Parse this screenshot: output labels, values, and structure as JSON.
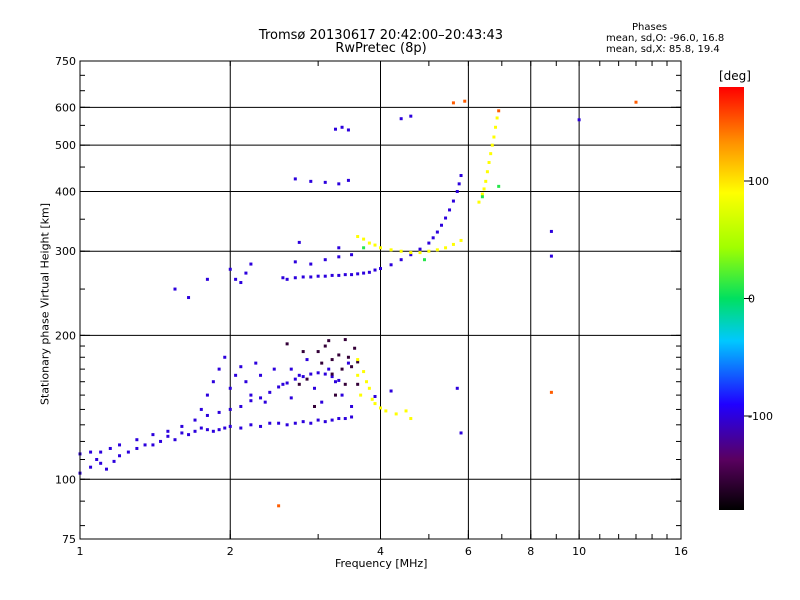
{
  "chart_data": {
    "type": "scatter",
    "title": "Tromsø 20130617 20:42:00–20:43:43",
    "subtitle": "RwPretec (8p)",
    "stats": {
      "heading": "Phases",
      "line1": "mean, sd,O: -96.0, 16.8",
      "line2": "mean, sd,X:  85.8, 19.4"
    },
    "xlabel": "Frequency [MHz]",
    "ylabel": "Stationary phase Virtual Height [km]",
    "x_scale": "log",
    "y_scale": "log",
    "xlim": [
      1,
      16
    ],
    "ylim": [
      75,
      750
    ],
    "x_ticks": [
      1,
      2,
      4,
      6,
      8,
      10,
      16
    ],
    "x_tick_labels": [
      "1",
      "2",
      "4",
      "6",
      "8",
      "10",
      "16"
    ],
    "x_grid": [
      2,
      4,
      6,
      8,
      10
    ],
    "y_ticks": [
      75,
      100,
      200,
      300,
      400,
      500,
      600,
      750
    ],
    "y_tick_labels": [
      "75",
      "100",
      "200",
      "300",
      "400",
      "500",
      "600",
      "750"
    ],
    "y_grid": [
      100,
      200,
      300,
      400,
      500,
      600
    ],
    "grid": true,
    "colorbar": {
      "label": "[deg]",
      "range": [
        -180,
        180
      ],
      "ticks": [
        100,
        0,
        -100
      ],
      "tick_labels": [
        "100",
        "0",
        "-100"
      ],
      "colormap": "rainbow (black-purple-blue-cyan-green-yellow-orange-red)"
    },
    "series": [
      {
        "phase_deg": -100,
        "points": [
          [
            1.0,
            103
          ],
          [
            1.05,
            106
          ],
          [
            1.08,
            110
          ],
          [
            1.1,
            108
          ],
          [
            1.13,
            105
          ],
          [
            1.17,
            109
          ],
          [
            1.2,
            112
          ],
          [
            1.25,
            114
          ],
          [
            1.3,
            116
          ],
          [
            1.35,
            118
          ],
          [
            1.4,
            118
          ],
          [
            1.45,
            120
          ],
          [
            1.5,
            123
          ],
          [
            1.55,
            121
          ],
          [
            1.6,
            125
          ],
          [
            1.65,
            124
          ],
          [
            1.7,
            126
          ],
          [
            1.75,
            128
          ],
          [
            1.8,
            127
          ],
          [
            1.85,
            126
          ],
          [
            1.9,
            127
          ],
          [
            1.95,
            128
          ],
          [
            2.0,
            129
          ],
          [
            2.1,
            128
          ],
          [
            2.2,
            130
          ],
          [
            2.3,
            129
          ],
          [
            2.4,
            131
          ],
          [
            2.5,
            131
          ],
          [
            2.6,
            130
          ],
          [
            2.7,
            131
          ],
          [
            2.8,
            132
          ],
          [
            2.9,
            131
          ],
          [
            3.0,
            133
          ],
          [
            3.1,
            132
          ],
          [
            3.2,
            133
          ],
          [
            3.3,
            134
          ],
          [
            3.4,
            134
          ],
          [
            3.5,
            135
          ],
          [
            1.0,
            113
          ],
          [
            1.05,
            114
          ],
          [
            1.1,
            114
          ],
          [
            1.15,
            116
          ],
          [
            1.2,
            118
          ],
          [
            1.3,
            121
          ],
          [
            1.4,
            124
          ],
          [
            1.5,
            126
          ],
          [
            1.6,
            129
          ],
          [
            1.7,
            133
          ],
          [
            1.8,
            136
          ],
          [
            1.9,
            138
          ],
          [
            2.0,
            140
          ],
          [
            2.1,
            142
          ],
          [
            2.2,
            146
          ],
          [
            2.3,
            148
          ],
          [
            2.4,
            152
          ],
          [
            2.5,
            156
          ],
          [
            2.6,
            159
          ],
          [
            2.7,
            162
          ],
          [
            2.8,
            164
          ],
          [
            2.9,
            166
          ],
          [
            3.0,
            167
          ],
          [
            3.1,
            166
          ],
          [
            3.2,
            164
          ],
          [
            3.3,
            161
          ],
          [
            1.75,
            140
          ],
          [
            1.8,
            150
          ],
          [
            1.85,
            160
          ],
          [
            1.9,
            170
          ],
          [
            1.95,
            180
          ],
          [
            2.0,
            155
          ],
          [
            2.05,
            165
          ],
          [
            2.1,
            172
          ],
          [
            2.15,
            160
          ],
          [
            2.2,
            150
          ],
          [
            2.25,
            175
          ],
          [
            2.3,
            165
          ],
          [
            2.35,
            145
          ],
          [
            2.45,
            170
          ],
          [
            2.55,
            158
          ],
          [
            2.65,
            148
          ],
          [
            2.75,
            165
          ],
          [
            2.85,
            178
          ],
          [
            2.95,
            155
          ],
          [
            3.05,
            145
          ],
          [
            3.15,
            170
          ],
          [
            3.25,
            160
          ],
          [
            3.35,
            150
          ],
          [
            3.45,
            175
          ],
          [
            3.5,
            142
          ],
          [
            2.0,
            275
          ],
          [
            2.05,
            262
          ],
          [
            2.1,
            258
          ],
          [
            2.15,
            270
          ],
          [
            2.2,
            282
          ],
          [
            2.55,
            264
          ],
          [
            2.6,
            262
          ],
          [
            2.7,
            264
          ],
          [
            2.8,
            265
          ],
          [
            2.9,
            265
          ],
          [
            3.0,
            266
          ],
          [
            3.1,
            266
          ],
          [
            3.2,
            267
          ],
          [
            3.3,
            267
          ],
          [
            3.4,
            268
          ],
          [
            3.5,
            268
          ],
          [
            3.6,
            269
          ],
          [
            3.7,
            270
          ],
          [
            3.8,
            271
          ],
          [
            3.9,
            274
          ],
          [
            4.0,
            276
          ],
          [
            4.2,
            281
          ],
          [
            4.4,
            288
          ],
          [
            4.6,
            295
          ],
          [
            4.8,
            303
          ],
          [
            5.0,
            312
          ],
          [
            5.1,
            320
          ],
          [
            5.2,
            329
          ],
          [
            5.3,
            340
          ],
          [
            5.4,
            352
          ],
          [
            5.5,
            366
          ],
          [
            5.6,
            382
          ],
          [
            5.7,
            400
          ],
          [
            5.75,
            415
          ],
          [
            5.8,
            432
          ],
          [
            2.7,
            285
          ],
          [
            2.9,
            282
          ],
          [
            3.1,
            288
          ],
          [
            3.3,
            292
          ],
          [
            3.5,
            295
          ],
          [
            2.7,
            425
          ],
          [
            2.9,
            420
          ],
          [
            3.1,
            418
          ],
          [
            3.3,
            415
          ],
          [
            3.45,
            422
          ],
          [
            3.25,
            540
          ],
          [
            3.35,
            545
          ],
          [
            3.45,
            538
          ],
          [
            4.4,
            568
          ],
          [
            4.6,
            575
          ],
          [
            1.55,
            250
          ],
          [
            1.65,
            240
          ],
          [
            1.8,
            262
          ],
          [
            2.75,
            313
          ],
          [
            3.3,
            305
          ],
          [
            10.0,
            565
          ],
          [
            8.8,
            330
          ],
          [
            8.8,
            293
          ],
          [
            5.7,
            155
          ],
          [
            5.8,
            125
          ],
          [
            4.2,
            153
          ],
          [
            3.9,
            149
          ],
          [
            2.65,
            170
          ]
        ]
      },
      {
        "phase_deg": -155,
        "points": [
          [
            3.0,
            185
          ],
          [
            3.1,
            190
          ],
          [
            3.2,
            178
          ],
          [
            3.3,
            182
          ],
          [
            3.4,
            196
          ],
          [
            3.5,
            172
          ],
          [
            3.55,
            188
          ],
          [
            3.2,
            166
          ],
          [
            3.35,
            170
          ],
          [
            3.45,
            180
          ],
          [
            3.25,
            150
          ],
          [
            3.4,
            158
          ],
          [
            2.75,
            158
          ],
          [
            2.85,
            162
          ],
          [
            2.95,
            142
          ],
          [
            3.05,
            175
          ],
          [
            3.15,
            195
          ],
          [
            2.6,
            192
          ],
          [
            2.8,
            185
          ],
          [
            3.6,
            158
          ],
          [
            3.6,
            176
          ]
        ]
      },
      {
        "phase_deg": 90,
        "points": [
          [
            3.6,
            322
          ],
          [
            3.7,
            318
          ],
          [
            3.8,
            312
          ],
          [
            3.9,
            309
          ],
          [
            4.0,
            305
          ],
          [
            4.2,
            302
          ],
          [
            4.4,
            300
          ],
          [
            4.6,
            298
          ],
          [
            4.8,
            298
          ],
          [
            5.0,
            300
          ],
          [
            5.2,
            302
          ],
          [
            5.4,
            305
          ],
          [
            5.6,
            310
          ],
          [
            5.8,
            316
          ],
          [
            6.3,
            380
          ],
          [
            6.4,
            395
          ],
          [
            6.45,
            405
          ],
          [
            6.5,
            420
          ],
          [
            6.55,
            440
          ],
          [
            6.6,
            460
          ],
          [
            6.65,
            480
          ],
          [
            6.7,
            500
          ],
          [
            6.75,
            520
          ],
          [
            6.8,
            545
          ],
          [
            6.85,
            570
          ],
          [
            3.7,
            168
          ],
          [
            3.75,
            160
          ],
          [
            3.8,
            155
          ],
          [
            3.85,
            147
          ],
          [
            3.9,
            144
          ],
          [
            4.0,
            141
          ],
          [
            4.1,
            139
          ],
          [
            4.3,
            137
          ],
          [
            4.5,
            139
          ],
          [
            4.6,
            134
          ],
          [
            3.6,
            165
          ],
          [
            3.65,
            150
          ],
          [
            3.6,
            178
          ]
        ]
      },
      {
        "phase_deg": 10,
        "points": [
          [
            3.7,
            305
          ],
          [
            4.9,
            288
          ],
          [
            6.4,
            390
          ],
          [
            6.9,
            410
          ]
        ]
      },
      {
        "phase_deg": 150,
        "points": [
          [
            6.9,
            590
          ],
          [
            5.6,
            613
          ],
          [
            5.9,
            618
          ],
          [
            13.0,
            615
          ],
          [
            8.8,
            152
          ],
          [
            2.5,
            88
          ]
        ]
      }
    ]
  }
}
